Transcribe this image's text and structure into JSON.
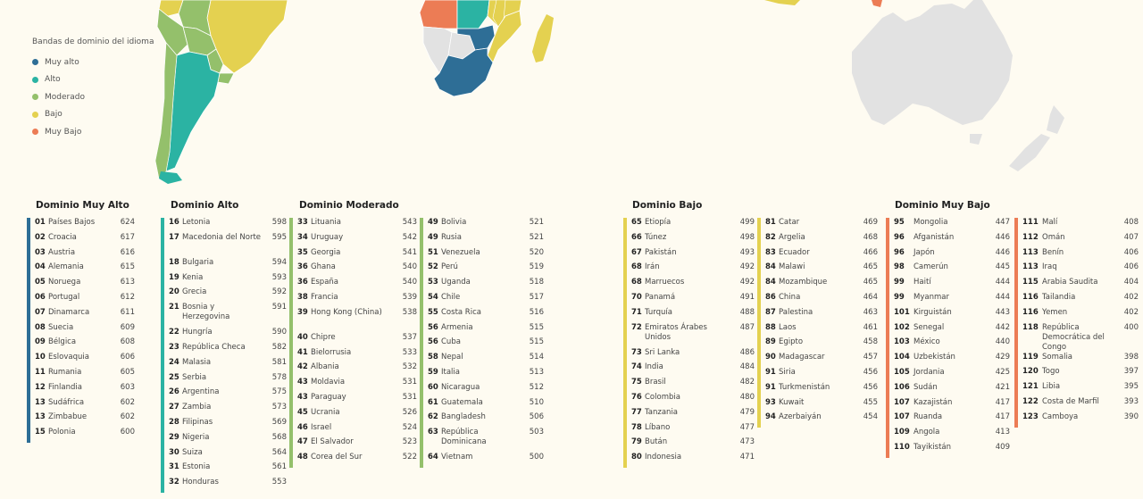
{
  "colors": {
    "muy_alto": "#2e6e96",
    "alto": "#2bb3a3",
    "moderado": "#94c06b",
    "bajo": "#e4d150",
    "muy_bajo": "#ec7c55",
    "no_data": "#e2e2e2"
  },
  "legend": {
    "title": "Bandas de dominio del idioma",
    "items": [
      {
        "label": "Muy alto",
        "color": "#2e6e96"
      },
      {
        "label": "Alto",
        "color": "#2bb3a3"
      },
      {
        "label": "Moderado",
        "color": "#94c06b"
      },
      {
        "label": "Bajo",
        "color": "#e4d150"
      },
      {
        "label": "Muy Bajo",
        "color": "#ec7c55"
      }
    ]
  },
  "headings": {
    "muy_alto": "Dominio Muy Alto",
    "alto": "Dominio Alto",
    "moderado": "Dominio Moderado",
    "bajo": "Dominio Bajo",
    "muy_bajo": "Dominio Muy Bajo"
  },
  "columns": [
    {
      "band": "muy_alto",
      "color": "#2e6e96",
      "rows": [
        {
          "r": "01",
          "n": "Países Bajos",
          "s": "624"
        },
        {
          "r": "02",
          "n": "Croacia",
          "s": "617"
        },
        {
          "r": "03",
          "n": "Austria",
          "s": "616"
        },
        {
          "r": "04",
          "n": "Alemania",
          "s": "615"
        },
        {
          "r": "05",
          "n": "Noruega",
          "s": "613"
        },
        {
          "r": "06",
          "n": "Portugal",
          "s": "612"
        },
        {
          "r": "07",
          "n": "Dinamarca",
          "s": "611"
        },
        {
          "r": "08",
          "n": "Suecia",
          "s": "609"
        },
        {
          "r": "09",
          "n": "Bélgica",
          "s": "608"
        },
        {
          "r": "10",
          "n": "Eslovaquia",
          "s": "606"
        },
        {
          "r": "11",
          "n": "Rumania",
          "s": "605"
        },
        {
          "r": "12",
          "n": "Finlandia",
          "s": "603"
        },
        {
          "r": "13",
          "n": "Sudáfrica",
          "s": "602"
        },
        {
          "r": "13",
          "n": "Zimbabue",
          "s": "602"
        },
        {
          "r": "15",
          "n": "Polonia",
          "s": "600"
        }
      ]
    },
    {
      "band": "alto",
      "color": "#2bb3a3",
      "rows": [
        {
          "r": "16",
          "n": "Letonia",
          "s": "598"
        },
        {
          "r": "17",
          "n": "Macedonia del Norte",
          "s": "595"
        },
        {
          "r": "18",
          "n": "Bulgaria",
          "s": "594"
        },
        {
          "r": "19",
          "n": "Kenia",
          "s": "593"
        },
        {
          "r": "20",
          "n": "Grecia",
          "s": "592"
        },
        {
          "r": "21",
          "n": "Bosnia y Herzegovina",
          "s": "591"
        },
        {
          "r": "22",
          "n": "Hungría",
          "s": "590"
        },
        {
          "r": "23",
          "n": "República Checa",
          "s": "582"
        },
        {
          "r": "24",
          "n": "Malasia",
          "s": "581"
        },
        {
          "r": "25",
          "n": "Serbia",
          "s": "578"
        },
        {
          "r": "26",
          "n": "Argentina",
          "s": "575"
        },
        {
          "r": "27",
          "n": "Zambia",
          "s": "573"
        },
        {
          "r": "28",
          "n": "Filipinas",
          "s": "569"
        },
        {
          "r": "29",
          "n": "Nigeria",
          "s": "568"
        },
        {
          "r": "30",
          "n": "Suiza",
          "s": "564"
        },
        {
          "r": "31",
          "n": "Estonia",
          "s": "561"
        },
        {
          "r": "32",
          "n": "Honduras",
          "s": "553"
        }
      ]
    },
    {
      "band": "moderado",
      "color": "#94c06b",
      "rows": [
        {
          "r": "33",
          "n": "Lituania",
          "s": "543"
        },
        {
          "r": "34",
          "n": "Uruguay",
          "s": "542"
        },
        {
          "r": "35",
          "n": "Georgia",
          "s": "541"
        },
        {
          "r": "36",
          "n": "Ghana",
          "s": "540"
        },
        {
          "r": "36",
          "n": "España",
          "s": "540"
        },
        {
          "r": "38",
          "n": "Francia",
          "s": "539"
        },
        {
          "r": "39",
          "n": "Hong Kong (China)",
          "s": "538"
        },
        {
          "r": "40",
          "n": "Chipre",
          "s": "537"
        },
        {
          "r": "41",
          "n": "Bielorrusia",
          "s": "533"
        },
        {
          "r": "42",
          "n": "Albania",
          "s": "532"
        },
        {
          "r": "43",
          "n": "Moldavia",
          "s": "531"
        },
        {
          "r": "43",
          "n": "Paraguay",
          "s": "531"
        },
        {
          "r": "45",
          "n": "Ucrania",
          "s": "526"
        },
        {
          "r": "46",
          "n": "Israel",
          "s": "524"
        },
        {
          "r": "47",
          "n": "El Salvador",
          "s": "523"
        },
        {
          "r": "48",
          "n": "Corea del Sur",
          "s": "522"
        }
      ]
    },
    {
      "band": "moderado",
      "color": "#94c06b",
      "rows": [
        {
          "r": "49",
          "n": "Bolivia",
          "s": "521"
        },
        {
          "r": "49",
          "n": "Rusia",
          "s": "521"
        },
        {
          "r": "51",
          "n": "Venezuela",
          "s": "520"
        },
        {
          "r": "52",
          "n": "Perú",
          "s": "519"
        },
        {
          "r": "53",
          "n": "Uganda",
          "s": "518"
        },
        {
          "r": "54",
          "n": "Chile",
          "s": "517"
        },
        {
          "r": "55",
          "n": "Costa Rica",
          "s": "516"
        },
        {
          "r": "56",
          "n": "Armenia",
          "s": "515"
        },
        {
          "r": "56",
          "n": "Cuba",
          "s": "515"
        },
        {
          "r": "58",
          "n": "Nepal",
          "s": "514"
        },
        {
          "r": "59",
          "n": "Italia",
          "s": "513"
        },
        {
          "r": "60",
          "n": "Nicaragua",
          "s": "512"
        },
        {
          "r": "61",
          "n": "Guatemala",
          "s": "510"
        },
        {
          "r": "62",
          "n": "Bangladesh",
          "s": "506"
        },
        {
          "r": "63",
          "n": "República Dominicana",
          "s": "503"
        },
        {
          "r": "64",
          "n": "Vietnam",
          "s": "500"
        }
      ]
    },
    {
      "band": "bajo",
      "color": "#e4d150",
      "rows": [
        {
          "r": "65",
          "n": "Etiopía",
          "s": "499"
        },
        {
          "r": "66",
          "n": "Túnez",
          "s": "498"
        },
        {
          "r": "67",
          "n": "Pakistán",
          "s": "493"
        },
        {
          "r": "68",
          "n": "Irán",
          "s": "492"
        },
        {
          "r": "68",
          "n": "Marruecos",
          "s": "492"
        },
        {
          "r": "70",
          "n": "Panamá",
          "s": "491"
        },
        {
          "r": "71",
          "n": "Turquía",
          "s": "488"
        },
        {
          "r": "72",
          "n": "Emiratos Árabes Unidos",
          "s": "487"
        },
        {
          "r": "73",
          "n": "Sri Lanka",
          "s": "486"
        },
        {
          "r": "74",
          "n": "India",
          "s": "484"
        },
        {
          "r": "75",
          "n": "Brasil",
          "s": "482"
        },
        {
          "r": "76",
          "n": "Colombia",
          "s": "480"
        },
        {
          "r": "77",
          "n": "Tanzania",
          "s": "479"
        },
        {
          "r": "78",
          "n": "Líbano",
          "s": "477"
        },
        {
          "r": "79",
          "n": "Bután",
          "s": "473"
        },
        {
          "r": "80",
          "n": "Indonesia",
          "s": "471"
        }
      ]
    },
    {
      "band": "bajo",
      "color": "#e4d150",
      "rows": [
        {
          "r": "81",
          "n": "Catar",
          "s": "469"
        },
        {
          "r": "82",
          "n": "Argelia",
          "s": "468"
        },
        {
          "r": "83",
          "n": "Ecuador",
          "s": "466"
        },
        {
          "r": "84",
          "n": "Malawi",
          "s": "465"
        },
        {
          "r": "84",
          "n": "Mozambique",
          "s": "465"
        },
        {
          "r": "86",
          "n": "China",
          "s": "464"
        },
        {
          "r": "87",
          "n": "Palestina",
          "s": "463"
        },
        {
          "r": "88",
          "n": "Laos",
          "s": "461"
        },
        {
          "r": "89",
          "n": "Egipto",
          "s": "458"
        },
        {
          "r": "90",
          "n": "Madagascar",
          "s": "457"
        },
        {
          "r": "91",
          "n": "Siria",
          "s": "456"
        },
        {
          "r": "91",
          "n": "Turkmenistán",
          "s": "456"
        },
        {
          "r": "93",
          "n": "Kuwait",
          "s": "455"
        },
        {
          "r": "94",
          "n": "Azerbaiyán",
          "s": "454"
        }
      ]
    },
    {
      "band": "muy_bajo",
      "color": "#ec7c55",
      "rows": [
        {
          "r": "95",
          "n": "Mongolia",
          "s": "447"
        },
        {
          "r": "96",
          "n": "Afganistán",
          "s": "446"
        },
        {
          "r": "96",
          "n": "Japón",
          "s": "446"
        },
        {
          "r": "98",
          "n": "Camerún",
          "s": "445"
        },
        {
          "r": "99",
          "n": "Haití",
          "s": "444"
        },
        {
          "r": "99",
          "n": "Myanmar",
          "s": "444"
        },
        {
          "r": "101",
          "n": "Kirguistán",
          "s": "443"
        },
        {
          "r": "102",
          "n": "Senegal",
          "s": "442"
        },
        {
          "r": "103",
          "n": "México",
          "s": "440"
        },
        {
          "r": "104",
          "n": "Uzbekistán",
          "s": "429"
        },
        {
          "r": "105",
          "n": "Jordania",
          "s": "425"
        },
        {
          "r": "106",
          "n": "Sudán",
          "s": "421"
        },
        {
          "r": "107",
          "n": "Kazajistán",
          "s": "417"
        },
        {
          "r": "107",
          "n": "Ruanda",
          "s": "417"
        },
        {
          "r": "109",
          "n": "Angola",
          "s": "413"
        },
        {
          "r": "110",
          "n": "Tayikistán",
          "s": "409"
        }
      ]
    },
    {
      "band": "muy_bajo",
      "color": "#ec7c55",
      "rows": [
        {
          "r": "111",
          "n": "Malí",
          "s": "408"
        },
        {
          "r": "112",
          "n": "Omán",
          "s": "407"
        },
        {
          "r": "113",
          "n": "Benín",
          "s": "406"
        },
        {
          "r": "113",
          "n": "Iraq",
          "s": "406"
        },
        {
          "r": "115",
          "n": "Arabia Saudita",
          "s": "404"
        },
        {
          "r": "116",
          "n": "Tailandia",
          "s": "402"
        },
        {
          "r": "116",
          "n": "Yemen",
          "s": "402"
        },
        {
          "r": "118",
          "n": "República Democrática del Congo",
          "s": "400"
        },
        {
          "r": "119",
          "n": "Somalia",
          "s": "398"
        },
        {
          "r": "120",
          "n": "Togo",
          "s": "397"
        },
        {
          "r": "121",
          "n": "Libia",
          "s": "395"
        },
        {
          "r": "122",
          "n": "Costa de Marfil",
          "s": "393"
        },
        {
          "r": "123",
          "n": "Camboya",
          "s": "390"
        }
      ]
    }
  ]
}
